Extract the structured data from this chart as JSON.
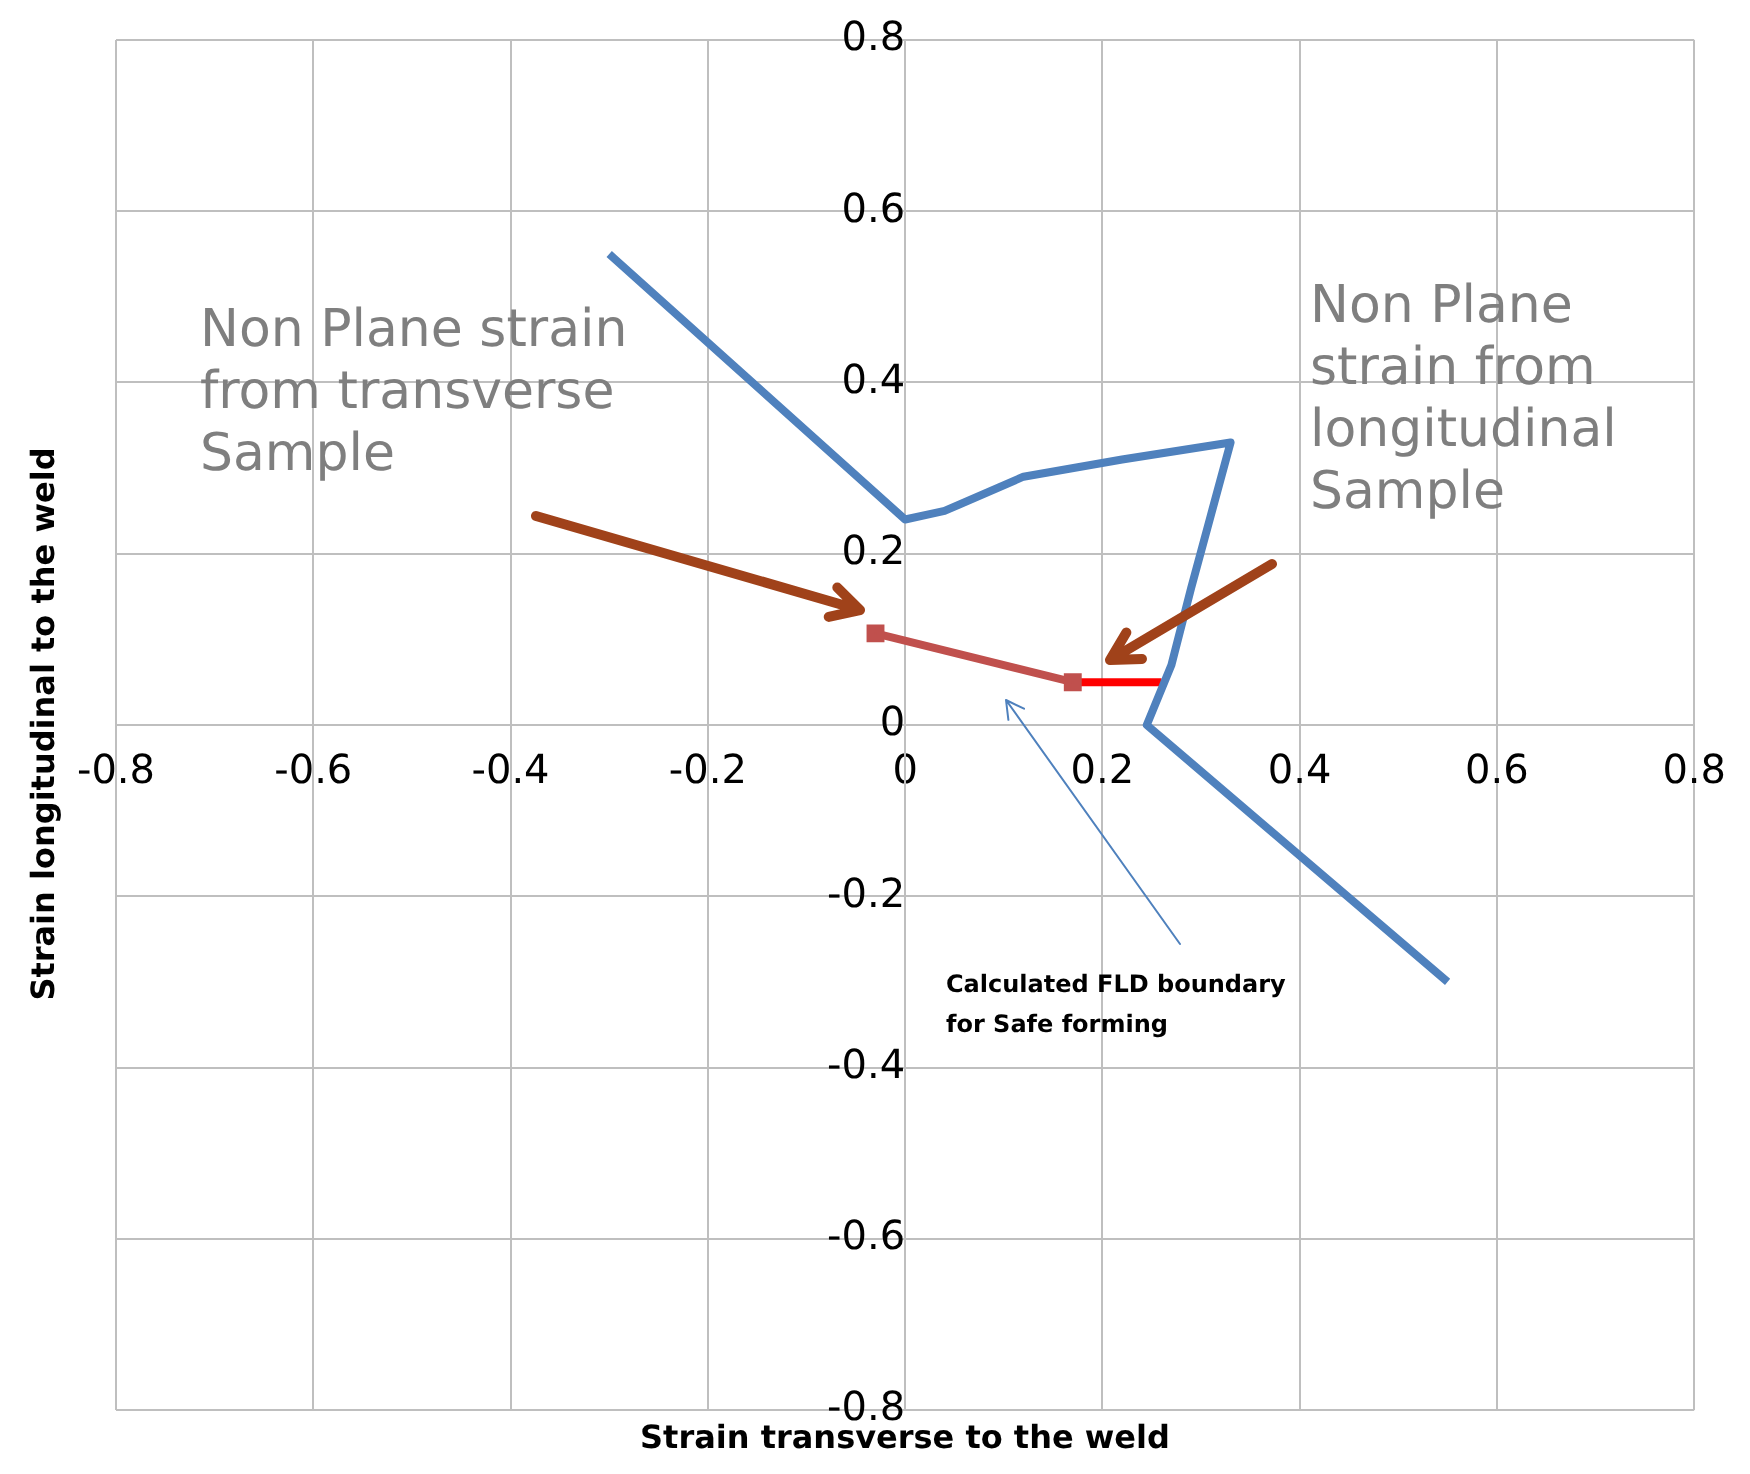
{
  "chart_data": {
    "type": "line",
    "xlabel": "Strain transverse  to the weld",
    "ylabel": "Strain longitudinal to the weld",
    "xlim": [
      -0.8,
      0.8
    ],
    "xticks": [
      -0.8,
      -0.6,
      -0.4,
      -0.2,
      0,
      0.2,
      0.4,
      0.6,
      0.8
    ],
    "ylim": [
      -0.8,
      0.8
    ],
    "yticks": [
      -0.8,
      -0.6,
      -0.4,
      -0.2,
      0,
      0.2,
      0.4,
      0.6,
      0.8
    ],
    "grid": true,
    "legend": false,
    "series": [
      {
        "color": "#4f81bd",
        "x": [
          -0.3,
          0,
          0.04,
          0.12,
          0.22,
          0.33,
          0.31,
          0.29,
          0.27,
          0.245,
          0.55
        ],
        "values": [
          0.55,
          0.24,
          0.25,
          0.29,
          0.31,
          0.33,
          0.245,
          0.16,
          0.07,
          0,
          -0.3
        ],
        "marker": "none"
      },
      {
        "color": "#c0504d",
        "x": [
          -0.03,
          0.17
        ],
        "values": [
          0.107,
          0.05
        ],
        "marker": "square"
      },
      {
        "color": "#ff0000",
        "x": [
          0.17,
          0.26
        ],
        "values": [
          0.05,
          0.05
        ],
        "marker": "none"
      }
    ],
    "annotations": [
      "Non Plane strain from transverse Sample",
      "Non Plane strain from longitudinal Sample",
      "Calculated FLD boundary for Safe forming"
    ]
  }
}
